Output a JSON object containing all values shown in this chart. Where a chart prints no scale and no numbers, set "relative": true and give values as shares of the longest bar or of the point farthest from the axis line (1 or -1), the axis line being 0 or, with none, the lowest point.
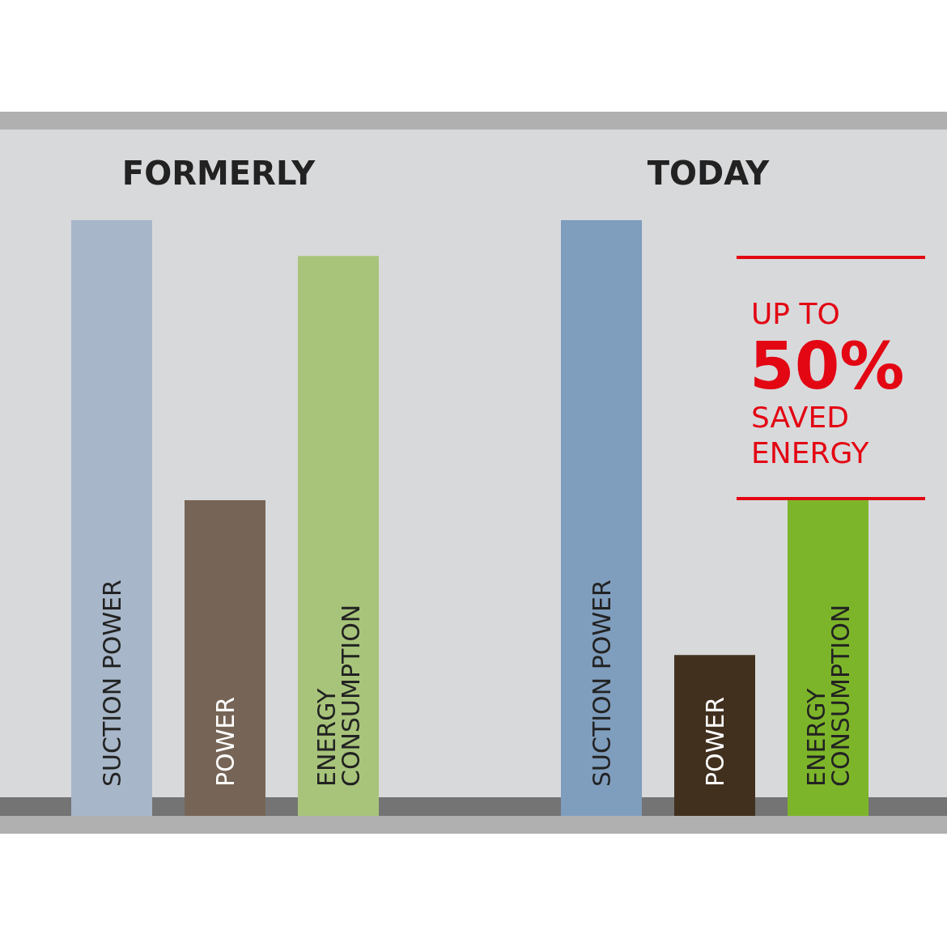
{
  "chart_data": [
    {
      "type": "bar",
      "title": "FORMERLY",
      "relative": true,
      "categories": [
        "SUCTION POWER",
        "POWER",
        "ENERGY CONSUMPTION"
      ],
      "values": [
        1,
        0.53,
        0.94
      ],
      "colors": [
        "#a7b6c8",
        "#766556",
        "#a8c47b"
      ]
    },
    {
      "type": "bar",
      "title": "TODAY",
      "relative": true,
      "categories": [
        "SUCTION POWER",
        "POWER",
        "ENERGY CONSUMPTION"
      ],
      "values": [
        1,
        0.27,
        0.53
      ],
      "colors": [
        "#7f9dbd",
        "#42301f",
        "#7db52a"
      ],
      "annotations": [
        "UP TO",
        "50%",
        "SAVED ENERGY"
      ]
    }
  ]
}
